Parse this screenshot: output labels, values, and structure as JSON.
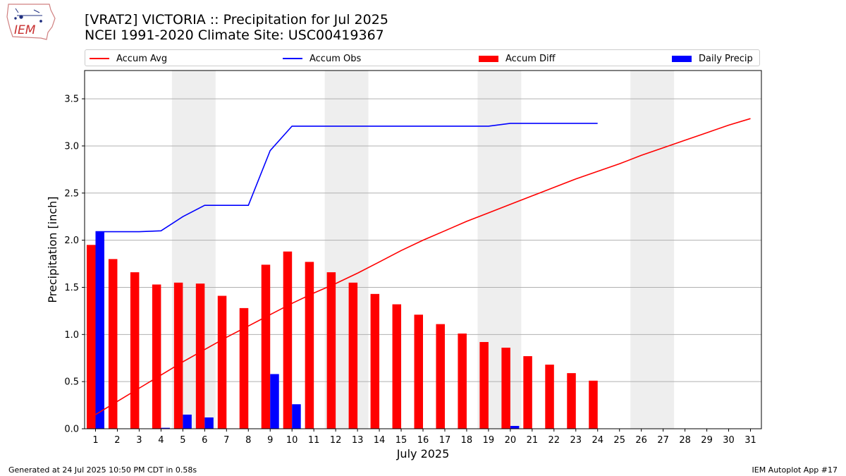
{
  "header": {
    "logo_text": "IEM",
    "title_line1": "[VRAT2] VICTORIA :: Precipitation for Jul 2025",
    "title_line2": "NCEI 1991-2020 Climate Site: USC00419367"
  },
  "legend": {
    "items": [
      {
        "label": "Accum Avg",
        "kind": "line",
        "color": "#ff0000"
      },
      {
        "label": "Accum Obs",
        "kind": "line",
        "color": "#0000ff"
      },
      {
        "label": "Accum Diff",
        "kind": "bar",
        "color": "#ff0000"
      },
      {
        "label": "Daily Precip",
        "kind": "bar",
        "color": "#0000ff"
      }
    ]
  },
  "footer": {
    "left": "Generated at 24 Jul 2025 10:50 PM CDT in 0.58s",
    "right": "IEM Autoplot App #17"
  },
  "chart_data": {
    "type": "bar",
    "xlabel": "July 2025",
    "ylabel": "Precipitation [inch]",
    "xlim": [
      0.5,
      31.5
    ],
    "ylim": [
      0,
      3.8
    ],
    "yticks": [
      "0.0",
      "0.5",
      "1.0",
      "1.5",
      "2.0",
      "2.5",
      "3.0",
      "3.5"
    ],
    "xticks": [
      "1",
      "2",
      "3",
      "4",
      "5",
      "6",
      "7",
      "8",
      "9",
      "10",
      "11",
      "12",
      "13",
      "14",
      "15",
      "16",
      "17",
      "18",
      "19",
      "20",
      "21",
      "22",
      "23",
      "24",
      "25",
      "26",
      "27",
      "28",
      "29",
      "30",
      "31"
    ],
    "grid": "y",
    "weekend_shading": [
      [
        4.5,
        6.5
      ],
      [
        11.5,
        13.5
      ],
      [
        18.5,
        20.5
      ],
      [
        25.5,
        27.5
      ]
    ],
    "shading_color": "#eeeeee",
    "series": [
      {
        "name": "Accum Avg",
        "kind": "line",
        "color": "#ff0000",
        "x": [
          1,
          2,
          3,
          4,
          5,
          6,
          7,
          8,
          9,
          10,
          11,
          12,
          13,
          14,
          15,
          16,
          17,
          18,
          19,
          20,
          21,
          22,
          23,
          24,
          25,
          26,
          27,
          28,
          29,
          30,
          31
        ],
        "values": [
          0.15,
          0.29,
          0.43,
          0.57,
          0.71,
          0.84,
          0.97,
          1.09,
          1.21,
          1.33,
          1.44,
          1.54,
          1.65,
          1.77,
          1.89,
          2.0,
          2.1,
          2.2,
          2.29,
          2.38,
          2.47,
          2.56,
          2.65,
          2.73,
          2.81,
          2.9,
          2.98,
          3.06,
          3.14,
          3.22,
          3.29
        ]
      },
      {
        "name": "Accum Obs",
        "kind": "line",
        "color": "#0000ff",
        "x": [
          1,
          2,
          3,
          4,
          5,
          6,
          7,
          8,
          9,
          10,
          11,
          12,
          13,
          14,
          15,
          16,
          17,
          18,
          19,
          20,
          21,
          22,
          23,
          24
        ],
        "values": [
          2.09,
          2.09,
          2.09,
          2.1,
          2.25,
          2.37,
          2.37,
          2.37,
          2.95,
          3.21,
          3.21,
          3.21,
          3.21,
          3.21,
          3.21,
          3.21,
          3.21,
          3.21,
          3.21,
          3.24,
          3.24,
          3.24,
          3.24,
          3.24
        ]
      },
      {
        "name": "Accum Diff",
        "kind": "bar",
        "color": "#ff0000",
        "x": [
          1,
          2,
          3,
          4,
          5,
          6,
          7,
          8,
          9,
          10,
          11,
          12,
          13,
          14,
          15,
          16,
          17,
          18,
          19,
          20,
          21,
          22,
          23,
          24
        ],
        "values": [
          1.95,
          1.8,
          1.66,
          1.53,
          1.55,
          1.54,
          1.41,
          1.28,
          1.74,
          1.88,
          1.77,
          1.66,
          1.55,
          1.43,
          1.32,
          1.21,
          1.11,
          1.01,
          0.92,
          0.86,
          0.77,
          0.68,
          0.59,
          0.51
        ]
      },
      {
        "name": "Daily Precip",
        "kind": "bar",
        "color": "#0000ff",
        "x": [
          1,
          2,
          3,
          4,
          5,
          6,
          7,
          8,
          9,
          10,
          11,
          12,
          13,
          14,
          15,
          16,
          17,
          18,
          19,
          20,
          21,
          22,
          23,
          24
        ],
        "values": [
          2.09,
          0,
          0,
          0.01,
          0.15,
          0.12,
          0,
          0,
          0.58,
          0.26,
          0,
          0,
          0,
          0,
          0,
          0,
          0,
          0,
          0,
          0.03,
          0,
          0,
          0,
          0
        ]
      }
    ]
  }
}
